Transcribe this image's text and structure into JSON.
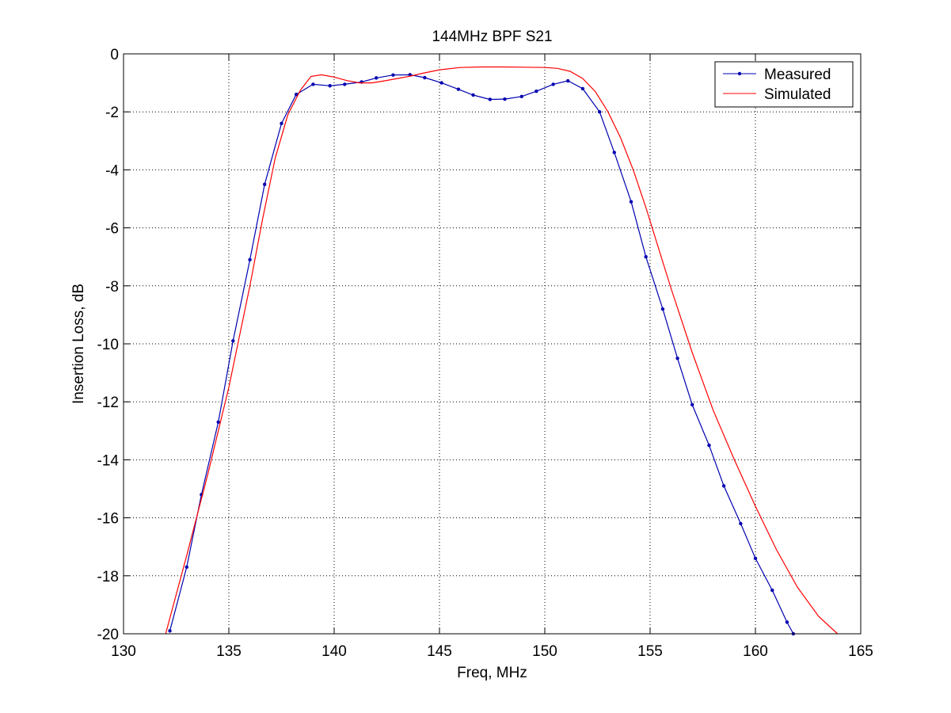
{
  "chart_data": {
    "type": "line",
    "title": "144MHz BPF S21",
    "xlabel": "Freq, MHz",
    "ylabel": "Insertion Loss, dB",
    "xlim": [
      130,
      165
    ],
    "ylim": [
      -20,
      0
    ],
    "x_ticks": [
      130,
      135,
      140,
      145,
      150,
      155,
      160,
      165
    ],
    "y_ticks": [
      0,
      -2,
      -4,
      -6,
      -8,
      -10,
      -12,
      -14,
      -16,
      -18,
      -20
    ],
    "x_tick_labels": [
      "130",
      "135",
      "140",
      "145",
      "150",
      "155",
      "160",
      "165"
    ],
    "y_tick_labels": [
      "0",
      "-2",
      "-4",
      "-6",
      "-8",
      "-10",
      "-12",
      "-14",
      "-16",
      "-18",
      "-20"
    ],
    "grid": true,
    "legend_position": "top-right",
    "series": [
      {
        "name": "Measured",
        "color": "#0000b0",
        "marker": "dot",
        "points": [
          [
            132.2,
            -19.9
          ],
          [
            133.0,
            -17.7
          ],
          [
            133.7,
            -15.2
          ],
          [
            134.5,
            -12.7
          ],
          [
            135.2,
            -9.9
          ],
          [
            136.0,
            -7.1
          ],
          [
            136.7,
            -4.5
          ],
          [
            137.5,
            -2.4
          ],
          [
            138.2,
            -1.4
          ],
          [
            139.0,
            -1.05
          ],
          [
            139.8,
            -1.1
          ],
          [
            140.5,
            -1.05
          ],
          [
            141.3,
            -0.97
          ],
          [
            142.0,
            -0.83
          ],
          [
            142.8,
            -0.73
          ],
          [
            143.6,
            -0.72
          ],
          [
            144.3,
            -0.82
          ],
          [
            145.1,
            -1.0
          ],
          [
            145.9,
            -1.22
          ],
          [
            146.6,
            -1.42
          ],
          [
            147.4,
            -1.57
          ],
          [
            148.1,
            -1.56
          ],
          [
            148.9,
            -1.47
          ],
          [
            149.6,
            -1.29
          ],
          [
            150.4,
            -1.05
          ],
          [
            151.1,
            -0.93
          ],
          [
            151.8,
            -1.2
          ],
          [
            152.6,
            -2.0
          ],
          [
            153.3,
            -3.4
          ],
          [
            154.1,
            -5.1
          ],
          [
            154.8,
            -7.0
          ],
          [
            155.6,
            -8.8
          ],
          [
            156.3,
            -10.5
          ],
          [
            157.0,
            -12.1
          ],
          [
            157.8,
            -13.5
          ],
          [
            158.5,
            -14.9
          ],
          [
            159.3,
            -16.2
          ],
          [
            160.0,
            -17.4
          ],
          [
            160.8,
            -18.5
          ],
          [
            161.5,
            -19.6
          ],
          [
            161.8,
            -20.0
          ]
        ]
      },
      {
        "name": "Simulated",
        "color": "#ff0000",
        "marker": "none",
        "points": [
          [
            132.0,
            -20.0
          ],
          [
            133.0,
            -17.3
          ],
          [
            134.0,
            -14.5
          ],
          [
            135.0,
            -11.5
          ],
          [
            136.0,
            -8.0
          ],
          [
            136.6,
            -5.7
          ],
          [
            137.2,
            -3.6
          ],
          [
            137.8,
            -2.1
          ],
          [
            138.4,
            -1.25
          ],
          [
            138.9,
            -0.78
          ],
          [
            139.4,
            -0.72
          ],
          [
            140.0,
            -0.8
          ],
          [
            140.6,
            -0.92
          ],
          [
            141.2,
            -1.0
          ],
          [
            141.8,
            -1.0
          ],
          [
            142.4,
            -0.93
          ],
          [
            143.0,
            -0.85
          ],
          [
            143.6,
            -0.77
          ],
          [
            144.2,
            -0.67
          ],
          [
            145.0,
            -0.55
          ],
          [
            146.0,
            -0.47
          ],
          [
            147.0,
            -0.45
          ],
          [
            148.0,
            -0.45
          ],
          [
            149.0,
            -0.46
          ],
          [
            150.0,
            -0.47
          ],
          [
            150.6,
            -0.5
          ],
          [
            151.2,
            -0.6
          ],
          [
            151.8,
            -0.85
          ],
          [
            152.4,
            -1.3
          ],
          [
            153.0,
            -2.0
          ],
          [
            153.6,
            -2.9
          ],
          [
            154.2,
            -4.0
          ],
          [
            154.8,
            -5.3
          ],
          [
            155.4,
            -6.7
          ],
          [
            156.0,
            -8.1
          ],
          [
            157.0,
            -10.3
          ],
          [
            158.0,
            -12.3
          ],
          [
            159.0,
            -14.0
          ],
          [
            160.0,
            -15.6
          ],
          [
            161.0,
            -17.1
          ],
          [
            162.0,
            -18.4
          ],
          [
            163.0,
            -19.4
          ],
          [
            163.9,
            -20.0
          ]
        ]
      }
    ]
  }
}
